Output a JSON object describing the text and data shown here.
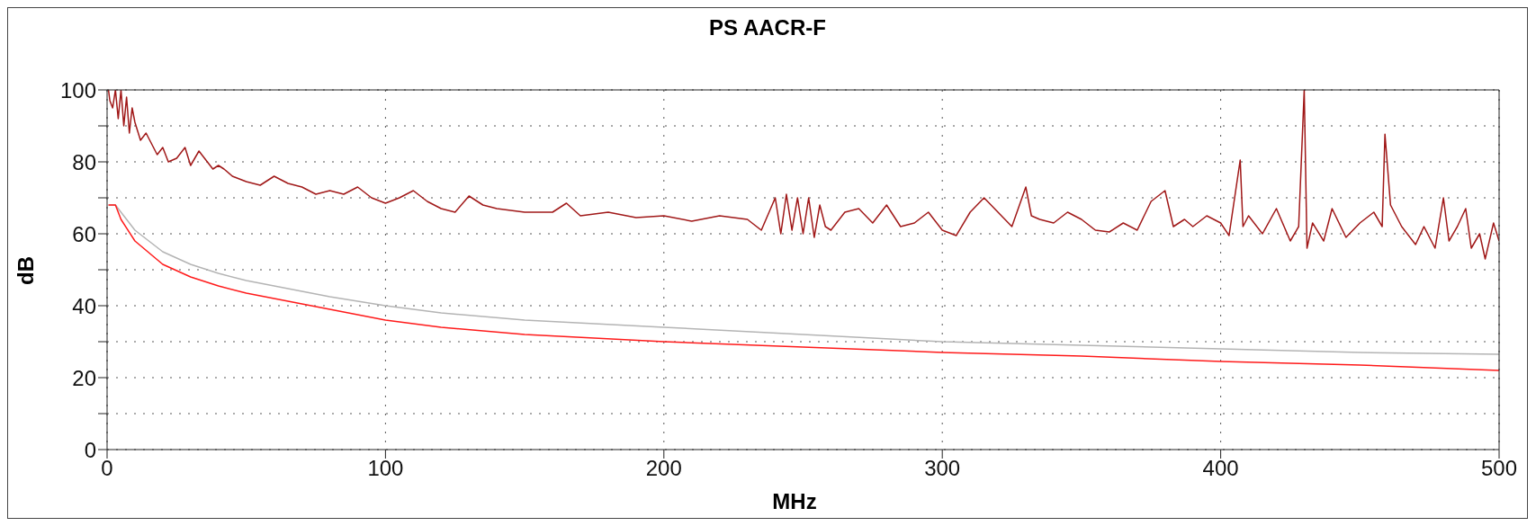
{
  "chart_data": {
    "type": "line",
    "title": "PS AACR-F",
    "xlabel": "MHz",
    "ylabel": "dB",
    "xlim": [
      0,
      500
    ],
    "xticks": [
      0,
      100,
      200,
      300,
      400,
      500
    ],
    "ylim": [
      0,
      100
    ],
    "yticks": [
      0,
      {
        "value": 10,
        "label": null
      },
      20,
      {
        "value": 30,
        "label": null
      },
      40,
      {
        "value": 50,
        "label": null
      },
      60,
      {
        "value": 70,
        "label": null
      },
      80,
      {
        "value": 90,
        "label": null
      },
      100
    ],
    "grid": true,
    "marker": "none",
    "line_style": "solid",
    "series": [
      {
        "color": "#a01818",
        "x": [
          0.5,
          1,
          2,
          3,
          4,
          5,
          6,
          7,
          8,
          9,
          10,
          12,
          14,
          16,
          18,
          20,
          22,
          25,
          28,
          30,
          33,
          35,
          38,
          40,
          42,
          45,
          50,
          55,
          60,
          65,
          70,
          75,
          80,
          85,
          90,
          95,
          100,
          105,
          110,
          115,
          120,
          125,
          130,
          135,
          140,
          150,
          160,
          165,
          170,
          180,
          190,
          200,
          210,
          220,
          230,
          235,
          240,
          242,
          244,
          246,
          248,
          250,
          252,
          254,
          256,
          258,
          260,
          265,
          270,
          275,
          280,
          285,
          290,
          295,
          300,
          305,
          310,
          315,
          320,
          325,
          330,
          332,
          335,
          340,
          345,
          350,
          355,
          360,
          365,
          370,
          375,
          380,
          383,
          387,
          390,
          395,
          400,
          403,
          407,
          408,
          410,
          415,
          420,
          425,
          428,
          430,
          431,
          433,
          437,
          440,
          445,
          450,
          455,
          458,
          459,
          461,
          465,
          470,
          473,
          477,
          480,
          482,
          485,
          488,
          490,
          493,
          495,
          498,
          500
        ],
        "values": [
          100,
          97,
          95,
          100,
          92,
          100,
          90,
          98,
          88,
          95,
          91,
          86,
          88,
          85,
          82,
          84,
          80,
          81,
          84,
          79,
          83,
          81,
          78,
          79,
          78,
          76,
          74.5,
          73.5,
          76,
          74,
          73,
          71,
          72,
          71,
          73,
          70,
          68.5,
          70,
          72,
          69,
          67,
          66,
          70.5,
          68,
          67,
          66,
          66,
          68.5,
          65,
          66,
          64.5,
          65,
          63.5,
          65,
          64,
          61,
          70,
          60,
          71,
          61,
          70,
          60,
          70,
          59,
          68,
          62,
          61,
          66,
          67,
          63,
          68,
          62,
          63,
          66,
          61,
          59.5,
          66,
          70,
          66,
          62,
          73,
          65,
          64,
          63,
          66,
          64,
          61,
          60.5,
          63,
          61,
          69,
          72,
          62,
          64,
          62,
          65,
          63,
          59.5,
          80.5,
          62,
          65,
          60,
          67,
          58,
          62,
          100,
          56,
          63,
          58,
          67,
          59,
          63,
          66,
          62,
          87.7,
          68,
          62,
          57,
          62,
          56,
          70,
          58,
          62,
          67,
          56,
          60,
          53,
          63,
          58
        ]
      },
      {
        "color": "#b4b4b4",
        "x": [
          0.5,
          3,
          5,
          10,
          20,
          30,
          40,
          50,
          60,
          70,
          80,
          100,
          120,
          150,
          200,
          250,
          300,
          350,
          400,
          450,
          500
        ],
        "values": [
          68,
          68,
          66,
          61,
          55,
          51.5,
          49,
          47,
          45.5,
          44,
          42.5,
          40,
          38,
          36,
          34,
          32,
          30,
          29,
          28,
          27,
          26.5
        ]
      },
      {
        "color": "#ff1a1a",
        "x": [
          0.5,
          3,
          5,
          10,
          20,
          30,
          40,
          50,
          60,
          70,
          80,
          100,
          120,
          150,
          200,
          250,
          300,
          350,
          400,
          450,
          500
        ],
        "values": [
          68,
          68,
          64,
          58,
          51.5,
          48,
          45.5,
          43.5,
          42,
          40.5,
          39,
          36,
          34,
          32,
          30,
          28.5,
          27,
          26,
          24.5,
          23.5,
          22
        ]
      }
    ]
  }
}
